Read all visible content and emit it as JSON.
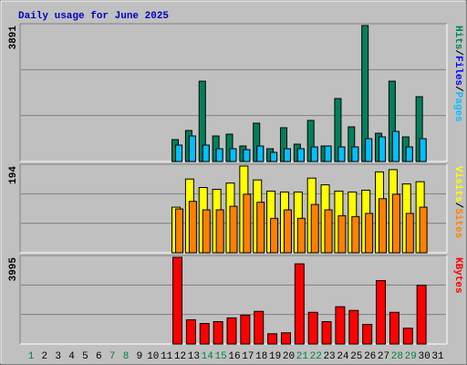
{
  "chart_data": {
    "title": "Daily usage for June 2025",
    "categories": [
      "1",
      "2",
      "3",
      "4",
      "5",
      "6",
      "7",
      "8",
      "9",
      "10",
      "11",
      "12",
      "13",
      "14",
      "15",
      "16",
      "17",
      "18",
      "19",
      "20",
      "21",
      "22",
      "23",
      "24",
      "25",
      "26",
      "27",
      "28",
      "29",
      "30",
      "31"
    ],
    "weekend_indices": [
      0,
      6,
      7,
      13,
      14,
      20,
      21,
      27,
      28
    ],
    "weekend_color": "#008040",
    "legend_separator": "/",
    "panels": [
      {
        "type": "bar",
        "ylim": [
          0,
          3891
        ],
        "yticks": [
          3891
        ],
        "grid": true,
        "series": [
          {
            "name": "Hits",
            "color": "#00805c",
            "values": [
              null,
              null,
              null,
              null,
              null,
              null,
              null,
              null,
              null,
              null,
              null,
              627,
              888,
              2298,
              731,
              783,
              444,
              1097,
              366,
              966,
              496,
              1175,
              444,
              1802,
              992,
              3891,
              809,
              2298,
              705,
              1854,
              null
            ]
          },
          {
            "name": "Files",
            "color": "#0000ff",
            "values": [
              null,
              null,
              null,
              null,
              null,
              null,
              null,
              null,
              null,
              null,
              null,
              470,
              731,
              470,
              366,
              366,
              339,
              444,
              261,
              366,
              366,
              418,
              444,
              418,
              418,
              653,
              705,
              862,
              418,
              653,
              null
            ]
          },
          {
            "name": "Pages",
            "color": "#00c0ff",
            "values": [
              null,
              null,
              null,
              null,
              null,
              null,
              null,
              null,
              null,
              null,
              null,
              470,
              731,
              470,
              366,
              366,
              339,
              444,
              261,
              366,
              366,
              418,
              444,
              418,
              418,
              653,
              705,
              862,
              418,
              653,
              null
            ]
          }
        ]
      },
      {
        "type": "bar",
        "ylim": [
          0,
          194
        ],
        "yticks": [
          194
        ],
        "grid": true,
        "series": [
          {
            "name": "Visits",
            "color": "#ffff00",
            "values": [
              null,
              null,
              null,
              null,
              null,
              null,
              null,
              null,
              null,
              null,
              null,
              102,
              165,
              146,
              142,
              156,
              194,
              163,
              138,
              136,
              136,
              167,
              152,
              138,
              136,
              140,
              181,
              186,
              154,
              159,
              null
            ]
          },
          {
            "name": "Sites",
            "color": "#ff8000",
            "values": [
              null,
              null,
              null,
              null,
              null,
              null,
              null,
              null,
              null,
              null,
              null,
              98,
              115,
              96,
              96,
              104,
              131,
              113,
              77,
              96,
              77,
              108,
              96,
              83,
              81,
              88,
              121,
              131,
              88,
              102,
              null
            ]
          }
        ]
      },
      {
        "type": "bar",
        "ylim": [
          0,
          3995
        ],
        "yticks": [
          3995
        ],
        "grid": true,
        "series": [
          {
            "name": "KBytes",
            "color": "#ff0000",
            "values": [
              null,
              null,
              null,
              null,
              null,
              null,
              null,
              null,
              null,
              null,
              null,
              3995,
              1117,
              945,
              1031,
              1203,
              1332,
              1504,
              473,
              516,
              3695,
              1461,
              1031,
              1718,
              1547,
              902,
              2921,
              1461,
              730,
              2706,
              null
            ]
          }
        ]
      }
    ]
  }
}
